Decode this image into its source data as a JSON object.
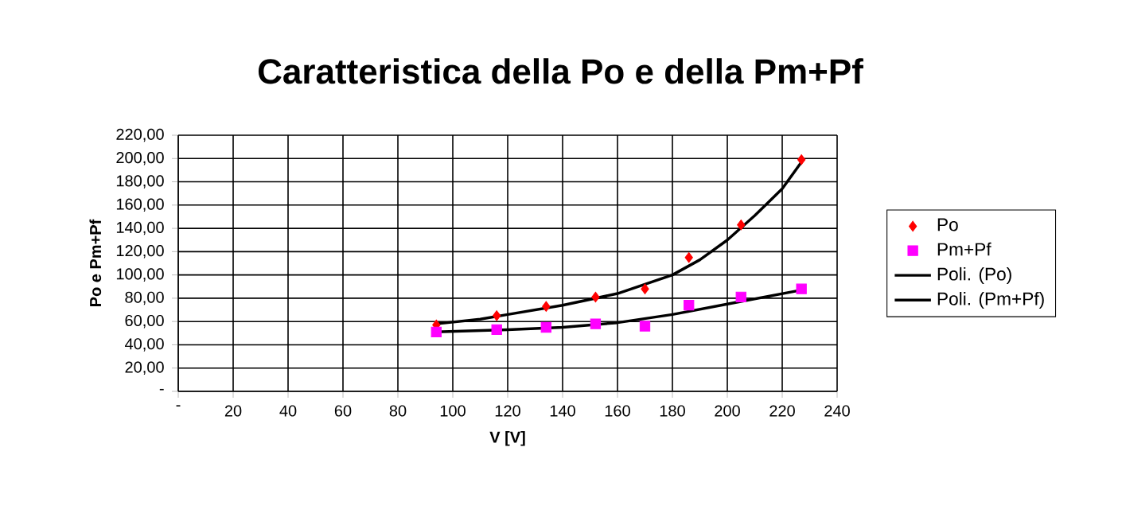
{
  "chart_data": {
    "type": "scatter",
    "title": "Caratteristica della Po e della Pm+Pf",
    "xlabel": "V [V]",
    "ylabel": "Po e Pm+Pf",
    "xlim": [
      0,
      240
    ],
    "xticks": [
      {
        "value": 0,
        "label": "-"
      },
      20,
      40,
      60,
      80,
      100,
      120,
      140,
      160,
      180,
      200,
      220,
      240
    ],
    "ylim": [
      0,
      220
    ],
    "yticks": [
      {
        "value": 0,
        "label": "-"
      },
      {
        "value": 20,
        "label": "20,00"
      },
      {
        "value": 40,
        "label": "40,00"
      },
      {
        "value": 60,
        "label": "60,00"
      },
      {
        "value": 80,
        "label": "80,00"
      },
      {
        "value": 100,
        "label": "100,00"
      },
      {
        "value": 120,
        "label": "120,00"
      },
      {
        "value": 140,
        "label": "140,00"
      },
      {
        "value": 160,
        "label": "160,00"
      },
      {
        "value": 180,
        "label": "180,00"
      },
      {
        "value": 200,
        "label": "200,00"
      },
      {
        "value": 220,
        "label": "220,00"
      }
    ],
    "grid": true,
    "legend": "right",
    "series": [
      {
        "name": "Po",
        "marker": "diamond",
        "color": "#ff0000",
        "x": [
          94,
          116,
          134,
          152,
          170,
          186,
          205,
          227
        ],
        "values": [
          57,
          65,
          73,
          81,
          88,
          115,
          143,
          199
        ]
      },
      {
        "name": "Pm+Pf",
        "marker": "square",
        "color": "#ff00ff",
        "x": [
          94,
          116,
          134,
          152,
          170,
          186,
          205,
          227
        ],
        "values": [
          51,
          53,
          55,
          58,
          56,
          74,
          81,
          88
        ]
      },
      {
        "name": "Poli. (Po)",
        "type": "line",
        "marker": "none",
        "color": "#000000",
        "x": [
          94,
          110,
          120,
          140,
          160,
          180,
          190,
          200,
          210,
          220,
          227
        ],
        "values": [
          58,
          62,
          66,
          74,
          84,
          100,
          113,
          130,
          151,
          174,
          197
        ]
      },
      {
        "name": "Poli. (Pm+Pf)",
        "type": "line",
        "marker": "none",
        "color": "#000000",
        "x": [
          94,
          120,
          140,
          160,
          180,
          200,
          227
        ],
        "values": [
          51,
          53,
          55,
          59,
          66,
          75,
          87
        ]
      }
    ]
  }
}
